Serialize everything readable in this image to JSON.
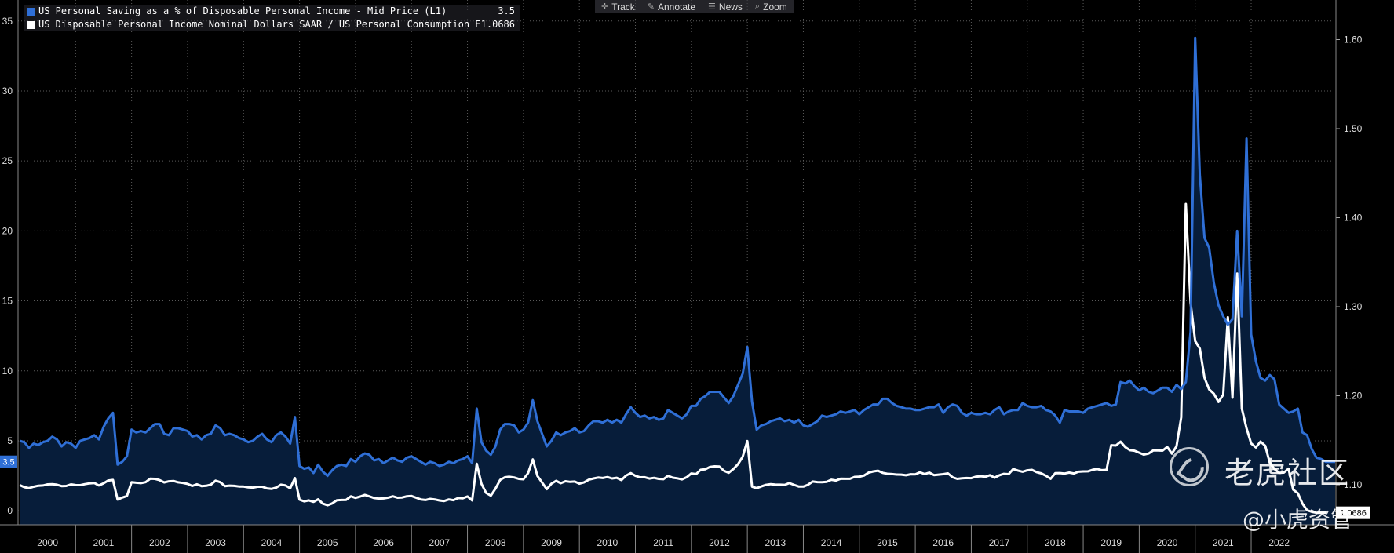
{
  "toolbar": {
    "items": [
      {
        "icon": "crosshair-icon",
        "glyph": "✛",
        "label": "Track"
      },
      {
        "icon": "pencil-icon",
        "glyph": "✎",
        "label": "Annotate"
      },
      {
        "icon": "news-icon",
        "glyph": "☰",
        "label": "News"
      },
      {
        "icon": "magnifier-icon",
        "glyph": "⌕",
        "label": "Zoom"
      }
    ]
  },
  "legend": [
    {
      "label": "US Personal Saving as a % of Disposable Personal Income - Mid Price (L1)",
      "value": "3.5",
      "color": "#2f6fd6"
    },
    {
      "label": "US Disposable Personal Income Nominal Dollars SAAR / US Personal Consumption Expenditures Nom",
      "value": "1.0686",
      "color": "#ffffff"
    }
  ],
  "watermark": {
    "brand": "老虎社区",
    "handle": "@小虎资管"
  },
  "chart_data": {
    "type": "line",
    "x_start": "2000-01",
    "x_frequency": "monthly",
    "x_tick_labels": [
      "2000",
      "2001",
      "2002",
      "2003",
      "2004",
      "2005",
      "2006",
      "2007",
      "2008",
      "2009",
      "2010",
      "2011",
      "2012",
      "2013",
      "2014",
      "2015",
      "2016",
      "2017",
      "2018",
      "2019",
      "2020",
      "2021",
      "2022"
    ],
    "left_axis": {
      "ticks": [
        "0",
        "5",
        "10",
        "15",
        "20",
        "25",
        "30",
        "35"
      ],
      "ylim": [
        -1,
        36.5
      ]
    },
    "right_axis": {
      "ticks": [
        "1.10",
        "1.20",
        "1.30",
        "1.40",
        "1.50",
        "1.60"
      ],
      "ylim": [
        1.0551,
        1.6445
      ]
    },
    "last_value_tags": {
      "left": "3.5",
      "right": "1.0686"
    },
    "series": [
      {
        "name": "US Personal Saving as a % of Disposable Personal Income - Mid Price (L1)",
        "axis": "left",
        "color": "#2f6fd6",
        "fill": true,
        "values": [
          5.0,
          4.9,
          4.5,
          4.8,
          4.7,
          4.9,
          5.0,
          5.3,
          5.1,
          4.6,
          4.9,
          4.8,
          4.5,
          5.0,
          5.1,
          5.2,
          5.4,
          5.1,
          6.0,
          6.6,
          7.0,
          3.3,
          3.5,
          3.9,
          5.8,
          5.6,
          5.7,
          5.6,
          5.9,
          6.2,
          6.2,
          5.5,
          5.4,
          5.9,
          5.9,
          5.8,
          5.7,
          5.3,
          5.4,
          5.1,
          5.4,
          5.5,
          6.1,
          5.9,
          5.4,
          5.5,
          5.4,
          5.2,
          5.1,
          4.9,
          5.0,
          5.3,
          5.5,
          5.1,
          4.9,
          5.4,
          5.6,
          5.3,
          4.8,
          6.7,
          3.2,
          3.0,
          3.1,
          2.7,
          3.3,
          2.8,
          2.5,
          2.9,
          3.2,
          3.3,
          3.2,
          3.7,
          3.5,
          3.9,
          4.1,
          4.0,
          3.6,
          3.7,
          3.4,
          3.6,
          3.8,
          3.6,
          3.5,
          3.8,
          3.9,
          3.7,
          3.5,
          3.3,
          3.5,
          3.4,
          3.2,
          3.3,
          3.5,
          3.4,
          3.6,
          3.7,
          3.9,
          3.4,
          7.3,
          4.9,
          4.3,
          4.0,
          4.6,
          5.8,
          6.2,
          6.2,
          6.1,
          5.6,
          5.8,
          6.3,
          7.9,
          6.4,
          5.5,
          4.6,
          5.0,
          5.6,
          5.4,
          5.6,
          5.7,
          5.9,
          5.6,
          5.7,
          6.1,
          6.4,
          6.4,
          6.3,
          6.5,
          6.3,
          6.5,
          6.3,
          6.9,
          7.4,
          7.0,
          6.7,
          6.8,
          6.6,
          6.7,
          6.5,
          6.6,
          7.2,
          7.0,
          6.8,
          6.6,
          6.9,
          7.5,
          7.5,
          8.0,
          8.2,
          8.5,
          8.5,
          8.5,
          8.1,
          7.7,
          8.2,
          9.0,
          9.8,
          11.7,
          7.8,
          5.8,
          6.1,
          6.2,
          6.4,
          6.5,
          6.6,
          6.4,
          6.5,
          6.3,
          6.5,
          6.1,
          6.0,
          6.2,
          6.4,
          6.8,
          6.7,
          6.8,
          6.9,
          7.1,
          7.0,
          7.1,
          7.2,
          6.9,
          7.2,
          7.4,
          7.6,
          7.6,
          8.0,
          8.0,
          7.7,
          7.5,
          7.4,
          7.3,
          7.3,
          7.2,
          7.2,
          7.3,
          7.4,
          7.4,
          7.6,
          7.0,
          7.4,
          7.6,
          7.5,
          7.0,
          6.8,
          7.0,
          6.9,
          6.9,
          7.0,
          6.9,
          7.2,
          7.4,
          6.9,
          7.1,
          7.2,
          7.2,
          7.7,
          7.5,
          7.4,
          7.4,
          7.5,
          7.2,
          7.1,
          6.8,
          6.3,
          7.2,
          7.1,
          7.1,
          7.1,
          7.0,
          7.3,
          7.4,
          7.5,
          7.6,
          7.7,
          7.5,
          7.6,
          9.2,
          9.1,
          9.3,
          8.9,
          8.6,
          8.8,
          8.5,
          8.4,
          8.6,
          8.8,
          8.8,
          8.5,
          9.0,
          8.7,
          9.2,
          12.8,
          33.8,
          24.0,
          19.5,
          18.8,
          16.3,
          14.7,
          13.9,
          13.3,
          13.7,
          20.0,
          13.9,
          26.6,
          12.6,
          10.7,
          9.5,
          9.3,
          9.7,
          9.4,
          7.6,
          7.3,
          7.0,
          7.1,
          7.3,
          5.6,
          5.4,
          4.4,
          3.8,
          3.7,
          3.5,
          3.5,
          3.5
        ]
      },
      {
        "name": "US Disposable Personal Income Nominal Dollars SAAR / US Personal Consumption Expenditures Nom",
        "axis": "right",
        "color": "#ffffff",
        "fill": false,
        "values": [
          1.0997,
          1.0974,
          1.0962,
          1.0978,
          1.099,
          1.0992,
          1.1005,
          1.1007,
          1.1001,
          1.0985,
          1.0987,
          1.1005,
          1.0997,
          1.0996,
          1.1007,
          1.1016,
          1.1021,
          1.0992,
          1.1017,
          1.1048,
          1.1054,
          1.0834,
          1.0857,
          1.0874,
          1.1029,
          1.1023,
          1.1019,
          1.1029,
          1.1068,
          1.1066,
          1.1052,
          1.1027,
          1.1039,
          1.1043,
          1.1028,
          1.1021,
          1.101,
          1.0987,
          1.1006,
          1.0985,
          1.0989,
          1.1002,
          1.1046,
          1.1029,
          1.0985,
          1.0991,
          1.0988,
          1.0981,
          1.098,
          1.0971,
          1.0969,
          1.0978,
          1.0978,
          1.096,
          1.0954,
          1.0969,
          1.1001,
          1.0992,
          1.0961,
          1.1075,
          1.0833,
          1.0814,
          1.0825,
          1.0808,
          1.0837,
          1.0788,
          1.077,
          1.0791,
          1.0826,
          1.0829,
          1.0831,
          1.0871,
          1.0853,
          1.0868,
          1.0887,
          1.087,
          1.0851,
          1.0845,
          1.0847,
          1.0856,
          1.0871,
          1.0855,
          1.0858,
          1.0871,
          1.0874,
          1.0855,
          1.0836,
          1.0829,
          1.0842,
          1.0836,
          1.0824,
          1.0818,
          1.0836,
          1.0828,
          1.0851,
          1.0849,
          1.0869,
          1.0825,
          1.1236,
          1.1011,
          1.091,
          1.0878,
          1.0956,
          1.1055,
          1.1084,
          1.109,
          1.1082,
          1.1066,
          1.1062,
          1.1132,
          1.1285,
          1.1099,
          1.1026,
          1.0951,
          1.1013,
          1.1044,
          1.1018,
          1.104,
          1.1033,
          1.1036,
          1.1013,
          1.1028,
          1.1057,
          1.1071,
          1.1081,
          1.1076,
          1.1087,
          1.1071,
          1.1079,
          1.1053,
          1.1103,
          1.1131,
          1.1101,
          1.1084,
          1.1085,
          1.107,
          1.1078,
          1.1066,
          1.1063,
          1.1101,
          1.108,
          1.1073,
          1.106,
          1.1085,
          1.1127,
          1.1119,
          1.1169,
          1.1175,
          1.1201,
          1.1207,
          1.1205,
          1.1157,
          1.1135,
          1.1177,
          1.1232,
          1.1316,
          1.1491,
          1.0979,
          1.0962,
          1.0982,
          1.0999,
          1.1007,
          1.1003,
          1.1001,
          1.0999,
          1.1019,
          1.0999,
          1.0981,
          1.098,
          1.1,
          1.1036,
          1.103,
          1.1029,
          1.1034,
          1.1057,
          1.1048,
          1.1068,
          1.1067,
          1.1067,
          1.1088,
          1.109,
          1.1103,
          1.1137,
          1.115,
          1.1158,
          1.1134,
          1.1124,
          1.112,
          1.1115,
          1.1114,
          1.1107,
          1.1118,
          1.1117,
          1.114,
          1.112,
          1.1137,
          1.1109,
          1.1114,
          1.1119,
          1.1128,
          1.1084,
          1.1066,
          1.1073,
          1.1076,
          1.1074,
          1.1091,
          1.1096,
          1.109,
          1.1108,
          1.108,
          1.1107,
          1.1123,
          1.1119,
          1.1177,
          1.116,
          1.1147,
          1.1162,
          1.1168,
          1.1142,
          1.1128,
          1.1102,
          1.1067,
          1.113,
          1.1132,
          1.1126,
          1.1137,
          1.1127,
          1.1147,
          1.115,
          1.1151,
          1.1169,
          1.1177,
          1.1164,
          1.1168,
          1.1444,
          1.1441,
          1.1484,
          1.1423,
          1.1389,
          1.1383,
          1.1361,
          1.1339,
          1.1351,
          1.1386,
          1.1385,
          1.1384,
          1.1425,
          1.135,
          1.1433,
          1.1757,
          1.4154,
          1.3044,
          1.2614,
          1.253,
          1.2201,
          1.2072,
          1.2022,
          1.1931,
          1.2012,
          1.2882,
          1.1978,
          1.3373,
          1.1856,
          1.1635,
          1.1465,
          1.142,
          1.1485,
          1.1439,
          1.1244,
          1.1177,
          1.1134,
          1.1137,
          1.1181,
          1.0946,
          1.0905,
          1.0788,
          1.0714,
          1.0696,
          1.0686,
          1.0686,
          1.0686
        ]
      }
    ]
  }
}
